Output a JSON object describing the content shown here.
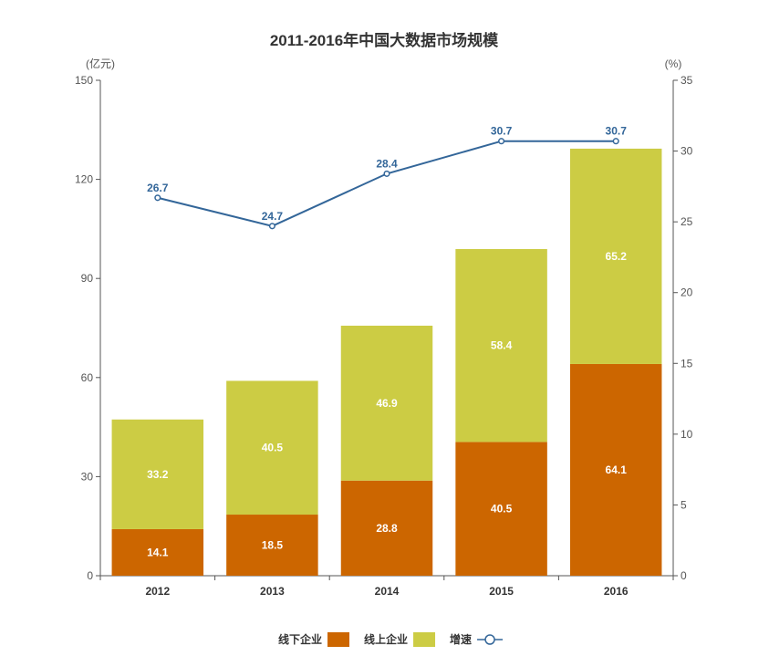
{
  "chart_data": {
    "type": "bar",
    "title": "2011-2016年中国大数据市场规模",
    "y_left_unit": "(亿元)",
    "y_right_unit": "(%)",
    "categories": [
      "2012",
      "2013",
      "2014",
      "2015",
      "2016"
    ],
    "ylim": [
      0,
      150
    ],
    "yticks": [
      0,
      30,
      60,
      90,
      120,
      150
    ],
    "y2lim": [
      0,
      35
    ],
    "y2ticks": [
      0,
      5,
      10,
      15,
      20,
      25,
      30,
      35
    ],
    "stacked": true,
    "series": [
      {
        "name": "线下企业",
        "kind": "bar",
        "color": "#cc6600",
        "values": [
          14.1,
          18.5,
          28.8,
          40.5,
          64.1
        ]
      },
      {
        "name": "线上企业",
        "kind": "bar",
        "color": "#cccc44",
        "values": [
          33.2,
          40.5,
          46.9,
          58.4,
          65.2
        ]
      },
      {
        "name": "增速",
        "kind": "line",
        "axis": "right",
        "color": "#336699",
        "values": [
          26.7,
          24.7,
          28.4,
          30.7,
          30.7
        ]
      }
    ],
    "legend_position": "bottom"
  }
}
